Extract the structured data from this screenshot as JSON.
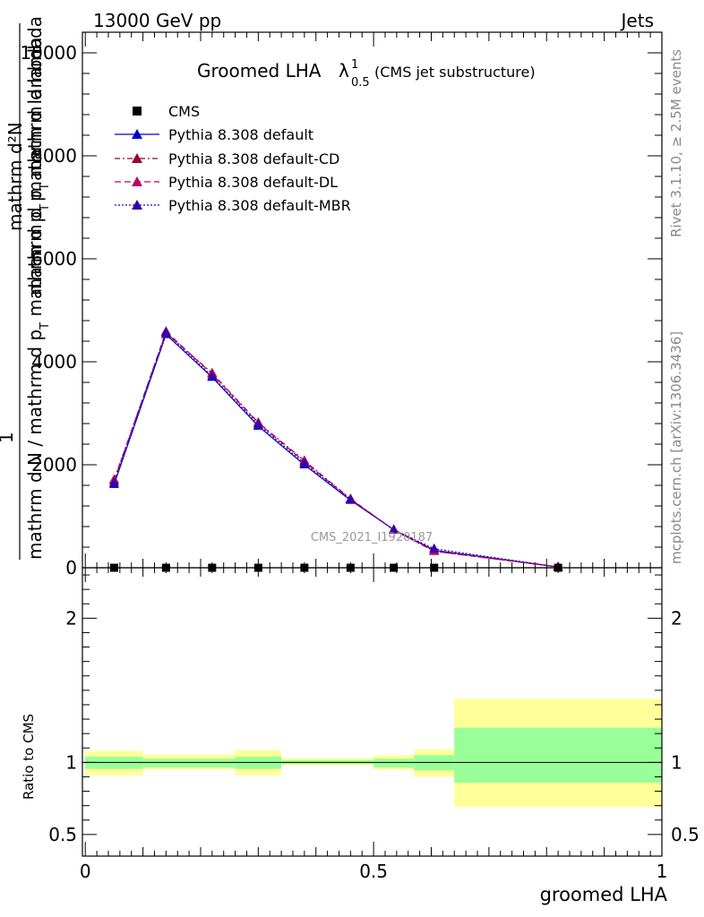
{
  "header": {
    "left": "13000 GeV pp",
    "right": "Jets"
  },
  "side_labels": {
    "rivet": "Rivet 3.1.10, ≥ 2.5M events",
    "mcplots": "mcplots.cern.ch [arXiv:1306.3436]"
  },
  "watermark": "CMS_2021_I1920187",
  "chart_data": [
    {
      "type": "line",
      "title": "Groomed LHA",
      "title_symbol": "λ",
      "title_sup": "1",
      "title_sub": "0.5",
      "subtitle": "(CMS jet substructure)",
      "ylabel_top": "mathrm d²N",
      "ylabel_mid": "1",
      "ylabel_frac_top": "mathrm d p_T mathrm d lambda",
      "ylabel_frac_bottom": "mathrm d N / mathrm d p_T",
      "ylabel_lines": {
        "l1": "mathrm d²N",
        "l2": "mathrm d p",
        "l2_sub": "T",
        "l2_rest": " mathrm d lambda",
        "l3": "1",
        "l4": "mathrm d N / mathrm d p",
        "l4_sub": "T",
        "l4_rest": " mathrm d p",
        "l4b_sub": "T",
        "l4c": " mathrm d lambda",
        "l5": "mathrm d N"
      },
      "ylim": [
        0,
        10400
      ],
      "xlim": [
        -0.005,
        1.0
      ],
      "yticks": [
        {
          "value": 0,
          "label": "0"
        },
        {
          "value": 2000,
          "label": "2000"
        },
        {
          "value": 4000,
          "label": "4000"
        },
        {
          "value": 6000,
          "label": "6000"
        },
        {
          "value": 8000,
          "label": "8000"
        },
        {
          "value": 10000,
          "label": "10000"
        }
      ],
      "bin_edges": [
        0.0,
        0.1,
        0.18,
        0.26,
        0.34,
        0.42,
        0.5,
        0.57,
        0.64,
        1.0
      ],
      "cms": {
        "name": "CMS",
        "x": [
          0.05,
          0.14,
          0.22,
          0.3,
          0.38,
          0.46,
          0.535,
          0.605,
          0.82
        ],
        "y": [
          0,
          0,
          0,
          0,
          0,
          0,
          0,
          0,
          0
        ]
      },
      "series": [
        {
          "name": "Pythia 8.308 default",
          "color": "#0000cc",
          "dash": "",
          "x": [
            0.05,
            0.14,
            0.22,
            0.3,
            0.38,
            0.46,
            0.535,
            0.605,
            0.82
          ],
          "y": [
            1620,
            4530,
            3700,
            2750,
            2000,
            1310,
            740,
            340,
            15
          ]
        },
        {
          "name": "Pythia 8.308 default-CD",
          "color": "#990033",
          "dash": "6,3,2,3",
          "x": [
            0.05,
            0.14,
            0.22,
            0.3,
            0.38,
            0.46,
            0.535,
            0.605,
            0.82
          ],
          "y": [
            1710,
            4560,
            3780,
            2820,
            2080,
            1340,
            730,
            320,
            15
          ]
        },
        {
          "name": "Pythia 8.308 default-DL",
          "color": "#bb0066",
          "dash": "7,4",
          "x": [
            0.05,
            0.14,
            0.22,
            0.3,
            0.38,
            0.46,
            0.535,
            0.605,
            0.82
          ],
          "y": [
            1690,
            4590,
            3760,
            2810,
            2060,
            1330,
            740,
            320,
            15
          ]
        },
        {
          "name": "Pythia 8.308 default-MBR",
          "color": "#3300aa",
          "dash": "2,2",
          "x": [
            0.05,
            0.14,
            0.22,
            0.3,
            0.38,
            0.46,
            0.535,
            0.605,
            0.82
          ],
          "y": [
            1650,
            4570,
            3720,
            2780,
            2030,
            1320,
            740,
            370,
            15
          ]
        }
      ]
    },
    {
      "type": "area",
      "ylabel": "Ratio to CMS",
      "xlabel": "groomed LHA",
      "xlim": [
        -0.005,
        1.0
      ],
      "ylim": [
        0.35,
        2.35
      ],
      "yticks": [
        {
          "value": 0.5,
          "label": "0.5"
        },
        {
          "value": 1,
          "label": "1"
        },
        {
          "value": 2,
          "label": "2"
        }
      ],
      "xticks": [
        {
          "value": 0,
          "label": "0"
        },
        {
          "value": 0.5,
          "label": "0.5"
        },
        {
          "value": 1,
          "label": "1"
        }
      ],
      "bands": [
        {
          "x0": 0.0,
          "x1": 0.1,
          "y_lo": 0.91,
          "y_hi": 1.08,
          "g_lo": 0.955,
          "g_hi": 1.04
        },
        {
          "x0": 0.1,
          "x1": 0.26,
          "y_lo": 0.95,
          "y_hi": 1.055,
          "g_lo": 0.965,
          "g_hi": 1.025
        },
        {
          "x0": 0.26,
          "x1": 0.34,
          "y_lo": 0.91,
          "y_hi": 1.085,
          "g_lo": 0.955,
          "g_hi": 1.04
        },
        {
          "x0": 0.34,
          "x1": 0.5,
          "y_lo": 0.98,
          "y_hi": 1.03,
          "g_lo": 0.99,
          "g_hi": 1.015
        },
        {
          "x0": 0.5,
          "x1": 0.57,
          "y_lo": 0.95,
          "y_hi": 1.05,
          "g_lo": 0.965,
          "g_hi": 1.025
        },
        {
          "x0": 0.57,
          "x1": 0.64,
          "y_lo": 0.9,
          "y_hi": 1.09,
          "g_lo": 0.945,
          "g_hi": 1.05
        },
        {
          "x0": 0.64,
          "x1": 1.0,
          "y_lo": 0.69,
          "y_hi": 1.44,
          "g_lo": 0.86,
          "g_hi": 1.24
        }
      ],
      "reference_line": 1.0,
      "colors": {
        "outer": "#ffff99",
        "inner": "#99ff99"
      }
    }
  ]
}
